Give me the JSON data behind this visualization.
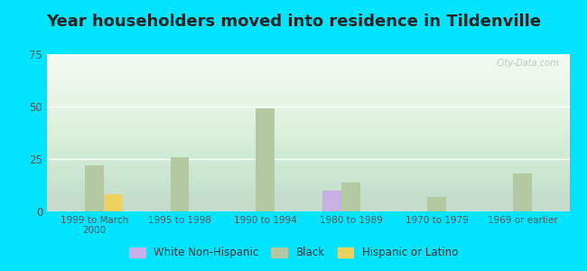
{
  "title": "Year householders moved into residence in Tildenville",
  "categories": [
    "1999 to March\n2000",
    "1995 to 1998",
    "1990 to 1994",
    "1980 to 1989",
    "1970 to 1979",
    "1969 or earlier"
  ],
  "white_non_hispanic": [
    0,
    0,
    0,
    10,
    0,
    0
  ],
  "black": [
    22,
    26,
    49,
    14,
    7,
    18
  ],
  "hispanic_or_latino": [
    8,
    0,
    0,
    0,
    0,
    0
  ],
  "white_color": "#c9aee5",
  "black_color": "#b5c9a0",
  "hispanic_color": "#f0d060",
  "ylim": [
    0,
    75
  ],
  "yticks": [
    0,
    25,
    50,
    75
  ],
  "outer_bg": "#00e5ff",
  "title_fontsize": 13,
  "bar_width": 0.22,
  "legend_labels": [
    "White Non-Hispanic",
    "Black",
    "Hispanic or Latino"
  ]
}
